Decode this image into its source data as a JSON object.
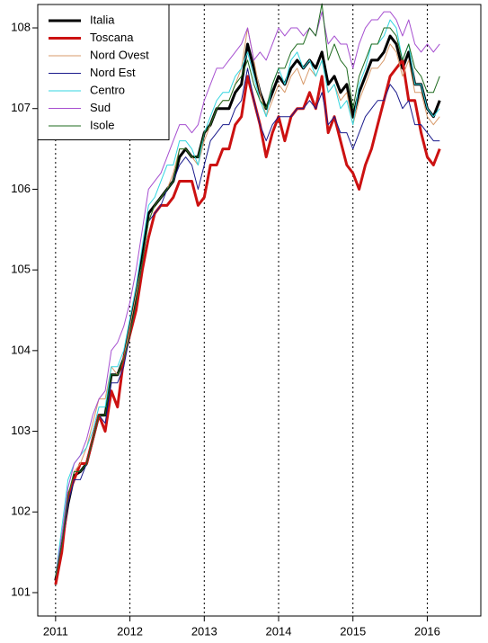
{
  "chart_data": {
    "type": "line",
    "x": [
      2011,
      2011.083,
      2011.167,
      2011.25,
      2011.333,
      2011.417,
      2011.5,
      2011.583,
      2011.667,
      2011.75,
      2011.833,
      2011.917,
      2012,
      2012.083,
      2012.167,
      2012.25,
      2012.333,
      2012.417,
      2012.5,
      2012.583,
      2012.667,
      2012.75,
      2012.833,
      2012.917,
      2013,
      2013.083,
      2013.167,
      2013.25,
      2013.333,
      2013.417,
      2013.5,
      2013.583,
      2013.667,
      2013.75,
      2013.833,
      2013.917,
      2014,
      2014.083,
      2014.167,
      2014.25,
      2014.333,
      2014.417,
      2014.5,
      2014.583,
      2014.667,
      2014.75,
      2014.833,
      2014.917,
      2015,
      2015.083,
      2015.167,
      2015.25,
      2015.333,
      2015.417,
      2015.5,
      2015.583,
      2015.667,
      2015.75,
      2015.833,
      2015.917,
      2016,
      2016.083,
      2016.167
    ],
    "series": [
      {
        "name": "Italia",
        "color": "#000000",
        "line_width": 3,
        "values": [
          101.15,
          101.6,
          102.1,
          102.45,
          102.5,
          102.6,
          102.9,
          103.2,
          103.2,
          103.7,
          103.7,
          103.9,
          104.3,
          104.7,
          105.2,
          105.7,
          105.8,
          105.9,
          106.0,
          106.1,
          106.4,
          106.5,
          106.4,
          106.4,
          106.7,
          106.8,
          107.0,
          107.0,
          107.0,
          107.2,
          107.3,
          107.8,
          107.5,
          107.2,
          107.0,
          107.2,
          107.4,
          107.3,
          107.5,
          107.6,
          107.5,
          107.6,
          107.5,
          107.7,
          107.3,
          107.4,
          107.2,
          107.3,
          106.9,
          107.2,
          107.4,
          107.6,
          107.6,
          107.7,
          107.9,
          107.8,
          107.5,
          107.7,
          107.3,
          107.3,
          107.0,
          106.9,
          107.1
        ]
      },
      {
        "name": "Toscana",
        "color": "#cc1111",
        "line_width": 3,
        "values": [
          101.1,
          101.5,
          102.2,
          102.4,
          102.6,
          102.6,
          102.9,
          103.2,
          103.0,
          103.5,
          103.3,
          103.9,
          104.2,
          104.5,
          105.0,
          105.4,
          105.7,
          105.8,
          105.8,
          105.9,
          106.1,
          106.1,
          106.1,
          105.8,
          105.9,
          106.3,
          106.3,
          106.5,
          106.5,
          106.8,
          106.9,
          107.4,
          107.1,
          106.8,
          106.4,
          106.7,
          106.9,
          106.6,
          106.9,
          107.0,
          107.0,
          107.2,
          107.0,
          107.4,
          106.7,
          106.9,
          106.6,
          106.3,
          106.2,
          106.0,
          106.3,
          106.5,
          106.8,
          107.1,
          107.4,
          107.5,
          107.6,
          107.1,
          107.1,
          106.7,
          106.4,
          106.3,
          106.5
        ]
      },
      {
        "name": "Nord Ovest",
        "color": "#d89a6a",
        "line_width": 1,
        "values": [
          101.2,
          101.7,
          102.2,
          102.5,
          102.6,
          102.8,
          103.1,
          103.4,
          103.4,
          103.8,
          103.7,
          103.9,
          104.3,
          104.7,
          105.1,
          105.6,
          105.8,
          105.9,
          106.0,
          106.2,
          106.5,
          106.5,
          106.4,
          106.3,
          106.6,
          106.8,
          107.0,
          107.1,
          107.1,
          107.3,
          107.5,
          108.0,
          107.6,
          107.2,
          106.9,
          107.1,
          107.3,
          107.2,
          107.4,
          107.5,
          107.3,
          107.5,
          107.4,
          107.6,
          107.2,
          107.3,
          107.1,
          107.2,
          106.8,
          107.1,
          107.3,
          107.5,
          107.5,
          107.6,
          107.8,
          107.7,
          107.4,
          107.6,
          107.2,
          107.2,
          106.9,
          106.8,
          106.9
        ]
      },
      {
        "name": "Nord Est",
        "color": "#1a1a8c",
        "line_width": 1,
        "values": [
          101.2,
          101.6,
          102.1,
          102.4,
          102.4,
          102.6,
          102.9,
          103.2,
          103.1,
          103.6,
          103.6,
          103.8,
          104.2,
          104.6,
          105.1,
          105.6,
          105.7,
          105.8,
          106.0,
          106.1,
          106.3,
          106.4,
          106.3,
          106.0,
          106.3,
          106.6,
          106.7,
          106.8,
          106.8,
          107.0,
          107.1,
          107.5,
          107.1,
          106.8,
          106.6,
          106.8,
          106.9,
          106.9,
          106.9,
          107.0,
          107.0,
          107.1,
          107.0,
          107.2,
          106.8,
          106.9,
          106.7,
          106.7,
          106.5,
          106.7,
          106.9,
          107.0,
          107.1,
          107.1,
          107.3,
          107.2,
          107.0,
          107.1,
          106.8,
          106.8,
          106.7,
          106.6,
          106.6
        ]
      },
      {
        "name": "Centro",
        "color": "#33d6e0",
        "line_width": 1,
        "values": [
          101.2,
          101.8,
          102.4,
          102.6,
          102.7,
          102.8,
          103.0,
          103.3,
          103.3,
          103.8,
          103.8,
          104.0,
          104.4,
          104.8,
          105.3,
          105.8,
          105.9,
          106.1,
          106.3,
          106.3,
          106.6,
          106.6,
          106.5,
          106.3,
          106.7,
          106.9,
          107.1,
          107.2,
          107.2,
          107.4,
          107.5,
          107.7,
          107.4,
          107.1,
          106.9,
          107.3,
          107.5,
          107.3,
          107.6,
          107.7,
          107.5,
          107.6,
          107.4,
          107.6,
          107.2,
          107.3,
          107.0,
          107.1,
          106.8,
          107.3,
          107.5,
          107.8,
          107.8,
          107.9,
          108.1,
          108.0,
          107.6,
          107.8,
          107.3,
          107.3,
          107.0,
          106.9,
          107.0
        ]
      },
      {
        "name": "Sud",
        "color": "#a64fd0",
        "line_width": 1,
        "values": [
          101.2,
          101.7,
          102.3,
          102.6,
          102.7,
          102.9,
          103.2,
          103.4,
          103.5,
          104.0,
          104.1,
          104.3,
          104.6,
          105.0,
          105.5,
          106.0,
          106.1,
          106.2,
          106.4,
          106.6,
          106.8,
          106.8,
          106.7,
          106.8,
          107.1,
          107.3,
          107.5,
          107.5,
          107.6,
          107.7,
          107.8,
          108.0,
          107.6,
          107.7,
          107.6,
          107.8,
          108.0,
          107.9,
          108.0,
          108.0,
          107.9,
          108.0,
          107.9,
          108.2,
          107.8,
          107.9,
          107.8,
          107.8,
          107.5,
          107.8,
          108.0,
          108.1,
          108.1,
          108.2,
          108.2,
          108.1,
          107.9,
          108.1,
          107.8,
          107.7,
          107.8,
          107.7,
          107.8
        ]
      },
      {
        "name": "Isole",
        "color": "#1f6b1f",
        "line_width": 1,
        "values": [
          101.2,
          101.6,
          102.2,
          102.5,
          102.5,
          102.6,
          102.9,
          103.2,
          103.2,
          103.7,
          103.7,
          103.9,
          104.2,
          104.6,
          105.1,
          105.6,
          105.8,
          105.9,
          106.0,
          106.1,
          106.5,
          106.5,
          106.4,
          106.4,
          106.7,
          106.8,
          107.0,
          107.1,
          107.1,
          107.3,
          107.4,
          107.6,
          107.3,
          107.1,
          107.0,
          107.3,
          107.5,
          107.5,
          107.7,
          107.8,
          107.8,
          108.0,
          107.9,
          108.3,
          107.6,
          107.8,
          107.6,
          107.5,
          107.0,
          107.4,
          107.6,
          107.8,
          107.8,
          108.0,
          108.0,
          107.9,
          107.6,
          107.8,
          107.5,
          107.4,
          107.2,
          107.2,
          107.4
        ]
      }
    ],
    "xlim": [
      2010.76,
      2016.72
    ],
    "ylim": [
      100.71,
      108.29
    ],
    "xticks": [
      2011,
      2012,
      2013,
      2014,
      2015,
      2016
    ],
    "yticks": [
      101,
      102,
      103,
      104,
      105,
      106,
      107,
      108
    ],
    "grid": "x",
    "legend": "top-left"
  }
}
